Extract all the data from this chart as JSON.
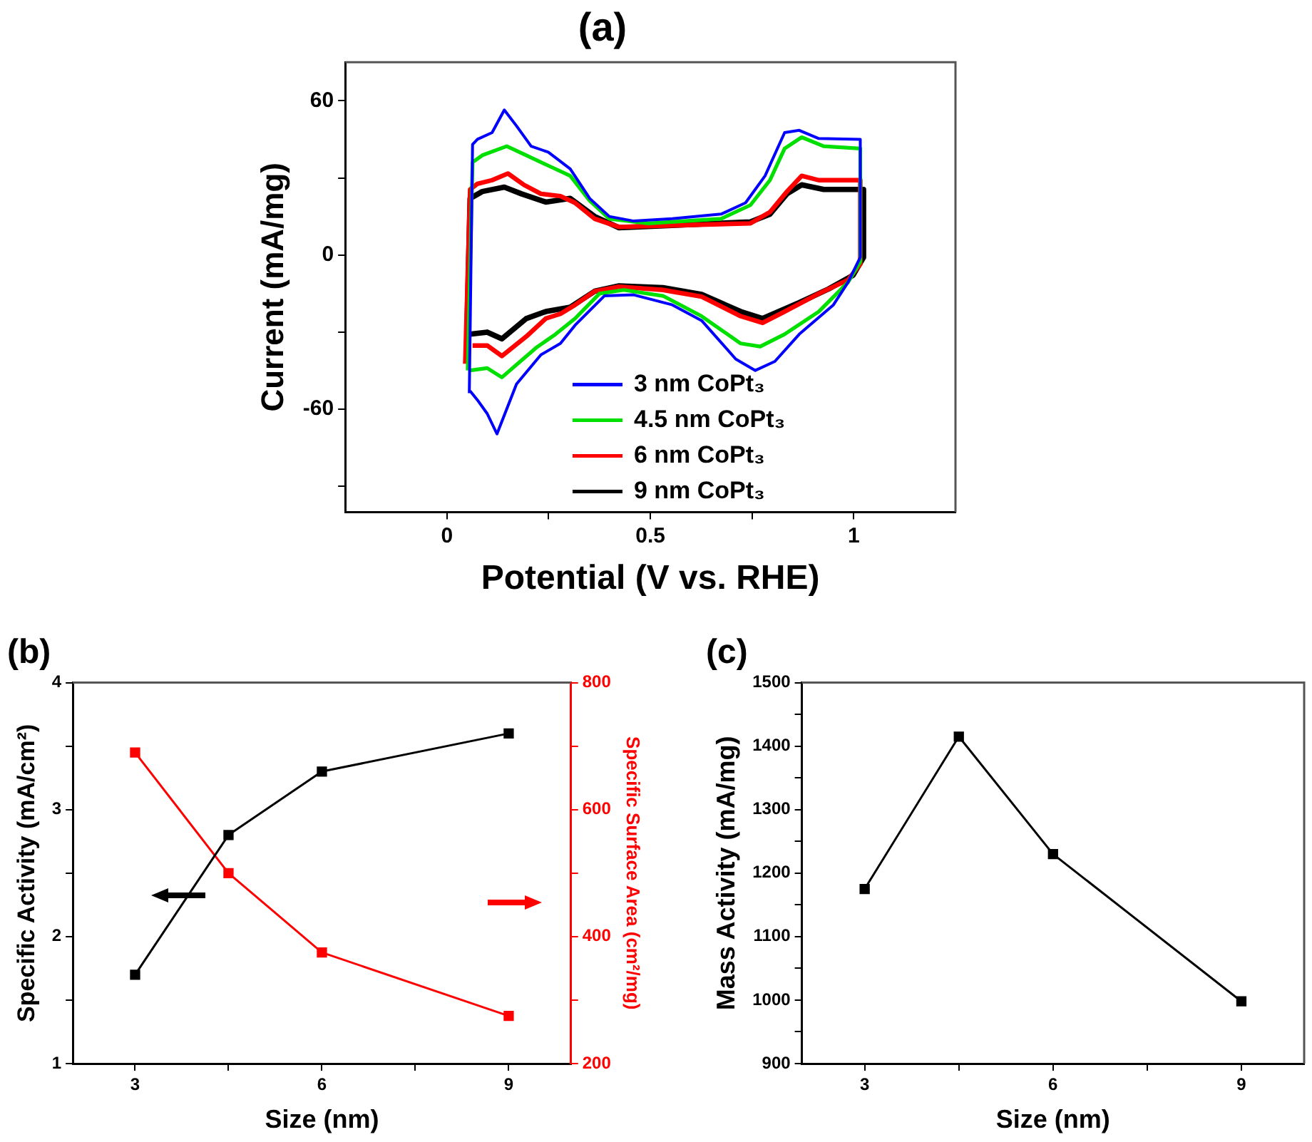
{
  "chart_data": [
    {
      "type": "line",
      "title": "(a)",
      "xlabel": "Potential (V vs. RHE)",
      "ylabel": "Current (mA/mg)",
      "xlim": [
        -0.25,
        1.25
      ],
      "xticks": [
        {
          "value": 0,
          "label": "0"
        },
        {
          "value": 0.25,
          "label": null
        },
        {
          "value": 0.5,
          "label": "0.5"
        },
        {
          "value": 0.75,
          "label": null
        },
        {
          "value": 1,
          "label": "1"
        }
      ],
      "ylim": [
        -100,
        75
      ],
      "yticks": [
        {
          "value": -90,
          "label": null
        },
        -60,
        {
          "value": -30,
          "label": null
        },
        0,
        {
          "value": 30,
          "label": null
        },
        60
      ],
      "legend": "bottom",
      "marker": "none",
      "series": [
        {
          "name": "3 nm CoPt₃",
          "color": "#0000ff",
          "x": [
            0.055,
            0.063,
            0.075,
            0.111,
            0.141,
            0.171,
            0.207,
            0.249,
            0.303,
            0.351,
            0.399,
            0.459,
            0.554,
            0.674,
            0.734,
            0.782,
            0.83,
            0.866,
            0.914,
            1.016,
            1.016,
            0.986,
            0.95,
            0.866,
            0.806,
            0.758,
            0.71,
            0.626,
            0.554,
            0.459,
            0.387,
            0.315,
            0.279,
            0.231,
            0.171,
            0.123,
            0.099,
            0.075,
            0.057
          ],
          "values": [
            -53.7,
            43,
            45,
            47.6,
            56.4,
            50.2,
            42.3,
            40,
            33.5,
            22,
            15,
            13.2,
            14.1,
            15.9,
            20.3,
            30.8,
            47.6,
            48.5,
            45.3,
            45,
            -0.9,
            -10.6,
            -19.4,
            -30.8,
            -41.4,
            -44.9,
            -40.5,
            -25.5,
            -19.4,
            -15.5,
            -15.9,
            -27.3,
            -34.4,
            -38.8,
            -50.2,
            -69.6,
            -61.7,
            -56.4,
            -52.9
          ]
        },
        {
          "name": "4.5 nm CoPt₃",
          "color": "#00e000",
          "x": [
            0.051,
            0.063,
            0.087,
            0.147,
            0.195,
            0.243,
            0.303,
            0.351,
            0.399,
            0.495,
            0.674,
            0.746,
            0.794,
            0.83,
            0.872,
            0.926,
            1.016,
            1.016,
            0.986,
            0.914,
            0.83,
            0.77,
            0.722,
            0.626,
            0.531,
            0.435,
            0.375,
            0.315,
            0.267,
            0.219,
            0.135,
            0.099,
            0.057
          ],
          "values": [
            -44.9,
            36.1,
            38.8,
            42.3,
            38.8,
            35.2,
            30.8,
            21.1,
            14.1,
            12.3,
            14.1,
            19.4,
            29.1,
            41.4,
            45.8,
            42.3,
            41.4,
            -2.6,
            -10.6,
            -22,
            -30.8,
            -35.6,
            -34.4,
            -23.8,
            -15.9,
            -13.6,
            -15,
            -24.7,
            -30.8,
            -36.1,
            -47.6,
            -44,
            -44.9
          ]
        },
        {
          "name": "6 nm CoPt₃",
          "color": "#ff0000",
          "x": [
            0.045,
            0.057,
            0.075,
            0.111,
            0.15,
            0.189,
            0.231,
            0.279,
            0.315,
            0.363,
            0.423,
            0.554,
            0.746,
            0.794,
            0.836,
            0.872,
            0.914,
            1.016,
            1.016,
            0.986,
            0.914,
            0.83,
            0.776,
            0.722,
            0.626,
            0.531,
            0.423,
            0.363,
            0.315,
            0.279,
            0.243,
            0.195,
            0.135,
            0.099,
            0.063
          ],
          "values": [
            -42.3,
            25.5,
            27.7,
            29.1,
            31.7,
            27.3,
            23.8,
            22.9,
            20.3,
            14.1,
            10.9,
            11.5,
            12.3,
            16.7,
            24.7,
            30.8,
            29.1,
            29.1,
            -3.5,
            -9.7,
            -15,
            -22,
            -26.4,
            -23.8,
            -16.2,
            -13.6,
            -12.3,
            -14.1,
            -19.4,
            -22.9,
            -24.7,
            -31.7,
            -39.3,
            -35.2,
            -35.2
          ]
        },
        {
          "name": "9 nm CoPt₃",
          "color": "#000000",
          "x": [
            0.049,
            0.057,
            0.087,
            0.141,
            0.183,
            0.243,
            0.303,
            0.363,
            0.423,
            0.554,
            0.746,
            0.794,
            0.836,
            0.872,
            0.926,
            1.024,
            1.024,
            0.998,
            0.938,
            0.866,
            0.776,
            0.722,
            0.626,
            0.531,
            0.423,
            0.363,
            0.303,
            0.243,
            0.195,
            0.135,
            0.099,
            0.057
          ],
          "values": [
            -31.7,
            22,
            24.7,
            26.4,
            23.8,
            20.6,
            22,
            15,
            10.6,
            11.5,
            12.9,
            15.9,
            23.8,
            27.3,
            25.5,
            25.5,
            -0.9,
            -7.9,
            -13.2,
            -18.5,
            -24.7,
            -22,
            -15.3,
            -12.7,
            -12,
            -14.1,
            -20.3,
            -22,
            -24.7,
            -32.6,
            -30,
            -30.8
          ]
        }
      ]
    },
    {
      "type": "line",
      "title": "(b)",
      "xlabel": "Size (nm)",
      "ylabel": "Specific Activity (mA/cm²)",
      "y2label": "Specific Surface Area (cm²/mg)",
      "x": [
        3,
        4.5,
        6,
        9
      ],
      "xlim": [
        2,
        10
      ],
      "xticks": [
        3,
        {
          "value": 4.5,
          "label": null
        },
        6,
        {
          "value": 7.5,
          "label": null
        },
        9
      ],
      "ylim": [
        1,
        4
      ],
      "yticks": [
        1,
        {
          "value": 1.5,
          "label": null
        },
        2,
        {
          "value": 2.5,
          "label": null
        },
        3,
        {
          "value": 3.5,
          "label": null
        },
        4
      ],
      "y2lim": [
        200,
        800
      ],
      "y2ticks": [
        200,
        {
          "value": 300,
          "label": null
        },
        400,
        {
          "value": 500,
          "label": null
        },
        600,
        {
          "value": 700,
          "label": null
        },
        800
      ],
      "marker": "square",
      "series": [
        {
          "color": "#000000",
          "values": [
            1.7,
            2.8,
            3.3,
            3.6
          ]
        },
        {
          "color": "#ff0000",
          "axis": "y2",
          "values": [
            690,
            500,
            375,
            275
          ]
        }
      ]
    },
    {
      "type": "line",
      "title": "(c)",
      "xlabel": "Size (nm)",
      "ylabel": "Mass Activity (mA/mg)",
      "x": [
        3,
        4.5,
        6,
        9
      ],
      "xlim": [
        2,
        10
      ],
      "xticks": [
        3,
        {
          "value": 4.5,
          "label": null
        },
        6,
        {
          "value": 7.5,
          "label": null
        },
        9
      ],
      "ylim": [
        900,
        1500
      ],
      "yticks": [
        900,
        {
          "value": 950,
          "label": null
        },
        1000,
        {
          "value": 1050,
          "label": null
        },
        1100,
        {
          "value": 1150,
          "label": null
        },
        1200,
        {
          "value": 1250,
          "label": null
        },
        1300,
        {
          "value": 1350,
          "label": null
        },
        1400,
        {
          "value": 1450,
          "label": null
        },
        1500
      ],
      "marker": "square",
      "series": [
        {
          "color": "#000000",
          "values": [
            1175,
            1415,
            1230,
            998
          ]
        }
      ]
    }
  ]
}
